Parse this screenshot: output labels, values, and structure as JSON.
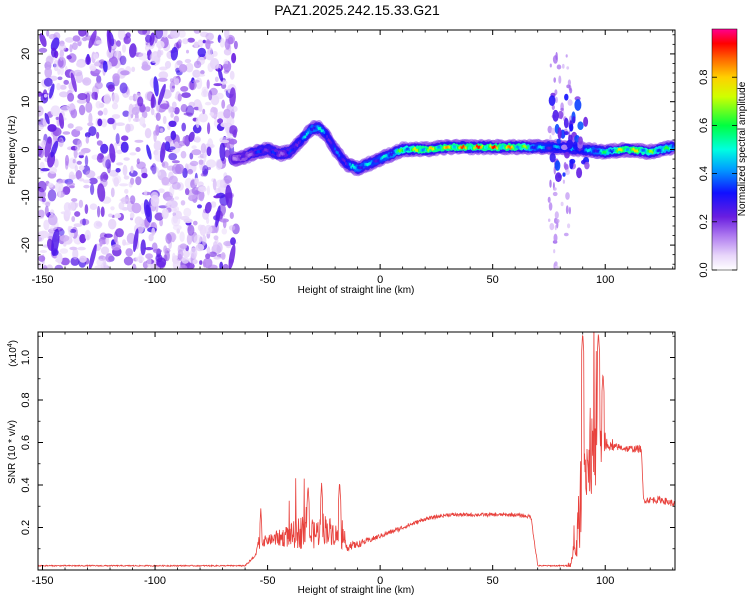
{
  "figure_title": "PAZ1.2025.242.15.33.G21",
  "chart_data": [
    {
      "type": "heatmap",
      "title": "PAZ1.2025.242.15.33.G21",
      "xlabel": "Height of straight line (km)",
      "ylabel": "Frequency (Hz)",
      "xlim": [
        -152,
        131
      ],
      "ylim": [
        -25,
        25
      ],
      "xticks": [
        -150,
        -100,
        -50,
        0,
        50,
        100
      ],
      "yticks": [
        -20,
        -10,
        0,
        10,
        20
      ],
      "colorbar": {
        "label": "Normalized spectral amplitude",
        "range": [
          0,
          1
        ],
        "ticks": [
          "0.0",
          "0.2",
          "0.4",
          "0.6",
          "0.8"
        ],
        "tick_values": [
          0.0,
          0.2,
          0.4,
          0.6,
          0.8
        ]
      },
      "noise_region_km": [
        -152,
        -64
      ],
      "ridge": {
        "x_km": [
          -65,
          -60,
          -55,
          -50,
          -45,
          -40,
          -35,
          -30,
          -27,
          -24,
          -20,
          -15,
          -10,
          -5,
          0,
          5,
          10,
          20,
          30,
          40,
          50,
          60,
          70,
          80,
          90,
          100,
          110,
          120,
          130
        ],
        "freq_hz": [
          -2,
          -1.5,
          -0.5,
          0,
          -1,
          -0.5,
          2,
          4.5,
          4.5,
          3,
          0,
          -3,
          -4,
          -3,
          -2,
          -1,
          0,
          0,
          0.5,
          0.5,
          0.5,
          0.5,
          0.5,
          0.5,
          0,
          -0.5,
          0,
          -0.5,
          0.5
        ],
        "amplitude": [
          0.25,
          0.25,
          0.35,
          0.4,
          0.3,
          0.35,
          0.45,
          0.55,
          0.55,
          0.45,
          0.4,
          0.45,
          0.55,
          0.5,
          0.5,
          0.55,
          0.7,
          0.8,
          0.85,
          0.95,
          0.95,
          0.85,
          0.5,
          0.45,
          0.45,
          0.6,
          0.85,
          0.7,
          0.6
        ]
      }
    },
    {
      "type": "line",
      "xlabel": "Height of straight line (km)",
      "ylabel": "SNR (10 * v/v)",
      "scale_label": "(x10",
      "scale_exp": "4",
      "xlim": [
        -152,
        131
      ],
      "ylim": [
        0,
        1.12
      ],
      "xticks": [
        -150,
        -100,
        -50,
        0,
        50,
        100
      ],
      "yticks": [
        "0.2",
        "0.4",
        "0.6",
        "0.8",
        "1.0"
      ],
      "ytick_values": [
        0.2,
        0.4,
        0.6,
        0.8,
        1.0
      ],
      "color": "#e8413c",
      "envelope": {
        "x_km": [
          -152,
          -60,
          -56,
          -54,
          -50,
          -40,
          -35,
          -30,
          -25,
          -20,
          -15,
          -10,
          0,
          10,
          20,
          30,
          40,
          50,
          60,
          67,
          69,
          70,
          75,
          80,
          83,
          85,
          87,
          88,
          90,
          92,
          95,
          98,
          100,
          105,
          110,
          116,
          117,
          120,
          125,
          131
        ],
        "base": [
          0.02,
          0.02,
          0.06,
          0.13,
          0.14,
          0.16,
          0.18,
          0.16,
          0.2,
          0.17,
          0.11,
          0.12,
          0.16,
          0.2,
          0.24,
          0.26,
          0.26,
          0.26,
          0.26,
          0.25,
          0.1,
          0.02,
          0.02,
          0.02,
          0.02,
          0.04,
          0.1,
          0.2,
          0.35,
          0.5,
          0.55,
          0.6,
          0.58,
          0.58,
          0.57,
          0.57,
          0.33,
          0.33,
          0.33,
          0.31
        ],
        "noise": [
          0.005,
          0.005,
          0.02,
          0.06,
          0.04,
          0.1,
          0.15,
          0.12,
          0.14,
          0.1,
          0.04,
          0.03,
          0.02,
          0.02,
          0.015,
          0.015,
          0.015,
          0.015,
          0.015,
          0.015,
          0.02,
          0.005,
          0.005,
          0.005,
          0.005,
          0.05,
          0.12,
          0.25,
          0.35,
          0.3,
          0.35,
          0.25,
          0.04,
          0.03,
          0.03,
          0.03,
          0.03,
          0.03,
          0.03,
          0.03
        ]
      },
      "peaks": [
        {
          "x_km": -53,
          "y": 0.29
        },
        {
          "x_km": -32,
          "y": 0.4
        },
        {
          "x_km": -26,
          "y": 0.41
        },
        {
          "x_km": -18,
          "y": 0.42
        },
        {
          "x_km": 90,
          "y": 1.12
        },
        {
          "x_km": 97,
          "y": 1.12
        },
        {
          "x_km": 99,
          "y": 0.93
        }
      ]
    }
  ]
}
